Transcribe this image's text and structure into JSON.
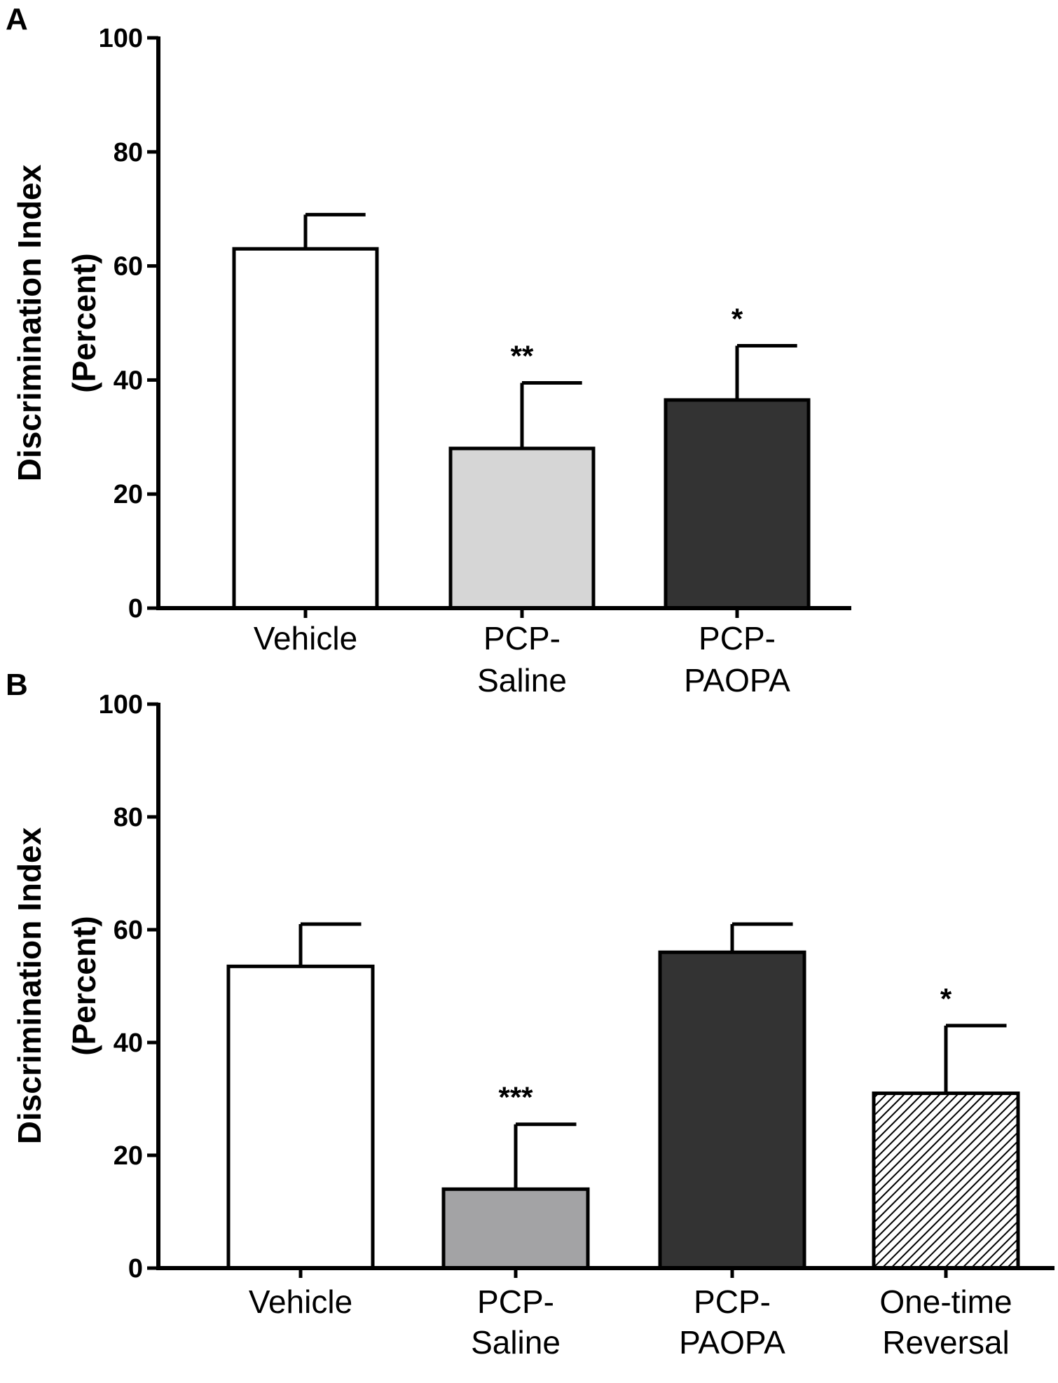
{
  "chart_data": [
    {
      "panel": "A",
      "type": "bar",
      "ylabel": [
        "Discrimination Index",
        "(Percent)"
      ],
      "ylim": [
        0,
        100
      ],
      "yticks": [
        0,
        20,
        40,
        60,
        80,
        100
      ],
      "grid": false,
      "categories": [
        [
          "Vehicle"
        ],
        [
          "PCP-",
          "Saline"
        ],
        [
          "PCP-",
          "PAOPA"
        ]
      ],
      "values": [
        63,
        28,
        36.5
      ],
      "errors": [
        6,
        11.5,
        9.5
      ],
      "significance": [
        "",
        "**",
        "*"
      ],
      "fills": [
        "#ffffff",
        "#d6d6d6",
        "#333333"
      ],
      "hatch": [
        false,
        false,
        false
      ]
    },
    {
      "panel": "B",
      "type": "bar",
      "ylabel": [
        "Discrimination Index",
        "(Percent)"
      ],
      "ylim": [
        0,
        100
      ],
      "yticks": [
        0,
        20,
        40,
        60,
        80,
        100
      ],
      "grid": false,
      "categories": [
        [
          "Vehicle"
        ],
        [
          "PCP-",
          "Saline"
        ],
        [
          "PCP-",
          "PAOPA"
        ],
        [
          "One-time",
          "Reversal"
        ]
      ],
      "values": [
        53.5,
        14,
        56,
        31
      ],
      "errors": [
        7.5,
        11.5,
        5,
        12
      ],
      "significance": [
        "",
        "***",
        "",
        "*"
      ],
      "fills": [
        "#ffffff",
        "#a3a3a5",
        "#333333",
        "#ffffff"
      ],
      "hatch": [
        false,
        false,
        false,
        true
      ]
    }
  ]
}
